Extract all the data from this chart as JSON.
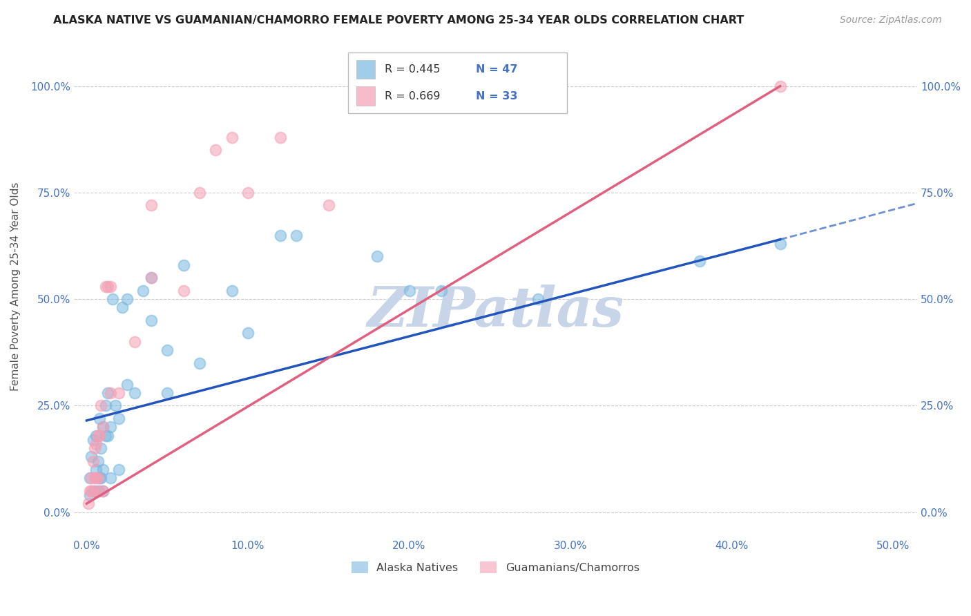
{
  "title": "ALASKA NATIVE VS GUAMANIAN/CHAMORRO FEMALE POVERTY AMONG 25-34 YEAR OLDS CORRELATION CHART",
  "source": "Source: ZipAtlas.com",
  "xlabel_ticks": [
    "0.0%",
    "10.0%",
    "20.0%",
    "30.0%",
    "40.0%",
    "50.0%"
  ],
  "ylabel_ticks": [
    "0.0%",
    "25.0%",
    "50.0%",
    "75.0%",
    "100.0%"
  ],
  "xlabel_tick_vals": [
    0,
    0.1,
    0.2,
    0.3,
    0.4,
    0.5
  ],
  "ylabel_tick_vals": [
    0,
    0.25,
    0.5,
    0.75,
    1.0
  ],
  "xlim": [
    -0.008,
    0.515
  ],
  "ylim": [
    -0.06,
    1.12
  ],
  "ylabel": "Female Poverty Among 25-34 Year Olds",
  "legend_label_1": "Alaska Natives",
  "legend_label_2": "Guamanians/Chamorros",
  "R1": 0.445,
  "N1": 47,
  "R2": 0.669,
  "N2": 33,
  "color_blue": "#7ab8e0",
  "color_pink": "#f4a0b5",
  "color_blue_text": "#4472c4",
  "color_pink_line": "#e06080",
  "color_blue_line": "#2255bb",
  "watermark_color": "#c8d5e8",
  "blue_line_x0": 0.0,
  "blue_line_y0": 0.215,
  "blue_line_x1": 0.43,
  "blue_line_y1": 0.64,
  "blue_line_ext_x1": 0.515,
  "blue_line_ext_y1": 0.725,
  "pink_line_x0": 0.0,
  "pink_line_y0": 0.02,
  "pink_line_x1": 0.43,
  "pink_line_y1": 1.0,
  "alaska_x": [
    0.002,
    0.002,
    0.003,
    0.004,
    0.005,
    0.006,
    0.006,
    0.007,
    0.007,
    0.008,
    0.008,
    0.009,
    0.009,
    0.01,
    0.01,
    0.01,
    0.012,
    0.012,
    0.013,
    0.013,
    0.015,
    0.015,
    0.016,
    0.018,
    0.02,
    0.02,
    0.022,
    0.025,
    0.025,
    0.03,
    0.035,
    0.04,
    0.04,
    0.05,
    0.05,
    0.06,
    0.07,
    0.09,
    0.1,
    0.12,
    0.13,
    0.18,
    0.2,
    0.22,
    0.28,
    0.38,
    0.43
  ],
  "alaska_y": [
    0.04,
    0.08,
    0.13,
    0.17,
    0.05,
    0.1,
    0.18,
    0.05,
    0.12,
    0.08,
    0.22,
    0.08,
    0.15,
    0.05,
    0.1,
    0.2,
    0.18,
    0.25,
    0.18,
    0.28,
    0.08,
    0.2,
    0.5,
    0.25,
    0.1,
    0.22,
    0.48,
    0.3,
    0.5,
    0.28,
    0.52,
    0.45,
    0.55,
    0.28,
    0.38,
    0.58,
    0.35,
    0.52,
    0.42,
    0.65,
    0.65,
    0.6,
    0.52,
    0.52,
    0.5,
    0.59,
    0.63
  ],
  "guam_x": [
    0.001,
    0.002,
    0.003,
    0.003,
    0.004,
    0.004,
    0.005,
    0.005,
    0.006,
    0.006,
    0.007,
    0.007,
    0.008,
    0.008,
    0.009,
    0.01,
    0.01,
    0.012,
    0.013,
    0.015,
    0.015,
    0.02,
    0.03,
    0.04,
    0.04,
    0.06,
    0.07,
    0.08,
    0.09,
    0.1,
    0.12,
    0.15,
    0.43
  ],
  "guam_y": [
    0.02,
    0.05,
    0.05,
    0.08,
    0.05,
    0.12,
    0.08,
    0.15,
    0.08,
    0.16,
    0.08,
    0.18,
    0.05,
    0.18,
    0.25,
    0.05,
    0.2,
    0.53,
    0.53,
    0.28,
    0.53,
    0.28,
    0.4,
    0.55,
    0.72,
    0.52,
    0.75,
    0.85,
    0.88,
    0.75,
    0.88,
    0.72,
    1.0
  ]
}
